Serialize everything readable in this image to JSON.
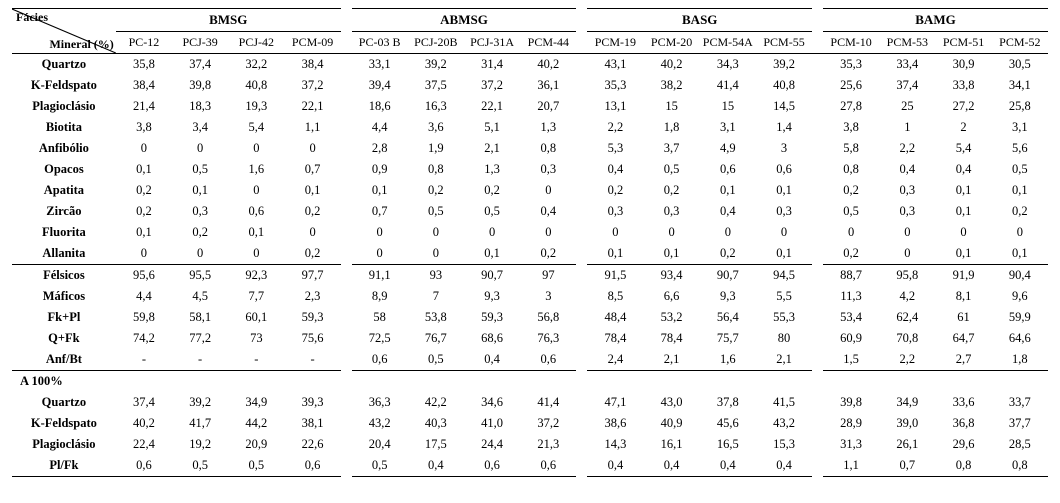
{
  "header": {
    "facies_label": "Fácies",
    "mineral_label": "Mineral (%)",
    "groups": [
      "BMSG",
      "ABMSG",
      "BASG",
      "BAMG"
    ],
    "samples": [
      [
        "PC-12",
        "PCJ-39",
        "PCJ-42",
        "PCM-09"
      ],
      [
        "PC-03 B",
        "PCJ-20B",
        "PCJ-31A",
        "PCM-44"
      ],
      [
        "PCM-19",
        "PCM-20",
        "PCM-54A",
        "PCM-55"
      ],
      [
        "PCM-10",
        "PCM-53",
        "PCM-51",
        "PCM-52"
      ]
    ]
  },
  "rows_main": [
    {
      "label": "Quartzo",
      "v": [
        [
          "35,8",
          "37,4",
          "32,2",
          "38,4"
        ],
        [
          "33,1",
          "39,2",
          "31,4",
          "40,2"
        ],
        [
          "43,1",
          "40,2",
          "34,3",
          "39,2"
        ],
        [
          "35,3",
          "33,4",
          "30,9",
          "30,5"
        ]
      ]
    },
    {
      "label": "K-Feldspato",
      "v": [
        [
          "38,4",
          "39,8",
          "40,8",
          "37,2"
        ],
        [
          "39,4",
          "37,5",
          "37,2",
          "36,1"
        ],
        [
          "35,3",
          "38,2",
          "41,4",
          "40,8"
        ],
        [
          "25,6",
          "37,4",
          "33,8",
          "34,1"
        ]
      ]
    },
    {
      "label": "Plagioclásio",
      "v": [
        [
          "21,4",
          "18,3",
          "19,3",
          "22,1"
        ],
        [
          "18,6",
          "16,3",
          "22,1",
          "20,7"
        ],
        [
          "13,1",
          "15",
          "15",
          "14,5"
        ],
        [
          "27,8",
          "25",
          "27,2",
          "25,8"
        ]
      ]
    },
    {
      "label": "Biotita",
      "v": [
        [
          "3,8",
          "3,4",
          "5,4",
          "1,1"
        ],
        [
          "4,4",
          "3,6",
          "5,1",
          "1,3"
        ],
        [
          "2,2",
          "1,8",
          "3,1",
          "1,4"
        ],
        [
          "3,8",
          "1",
          "2",
          "3,1"
        ]
      ]
    },
    {
      "label": "Anfibólio",
      "v": [
        [
          "0",
          "0",
          "0",
          "0"
        ],
        [
          "2,8",
          "1,9",
          "2,1",
          "0,8"
        ],
        [
          "5,3",
          "3,7",
          "4,9",
          "3"
        ],
        [
          "5,8",
          "2,2",
          "5,4",
          "5,6"
        ]
      ]
    },
    {
      "label": "Opacos",
      "v": [
        [
          "0,1",
          "0,5",
          "1,6",
          "0,7"
        ],
        [
          "0,9",
          "0,8",
          "1,3",
          "0,3"
        ],
        [
          "0,4",
          "0,5",
          "0,6",
          "0,6"
        ],
        [
          "0,8",
          "0,4",
          "0,4",
          "0,5"
        ]
      ]
    },
    {
      "label": "Apatita",
      "v": [
        [
          "0,2",
          "0,1",
          "0",
          "0,1"
        ],
        [
          "0,1",
          "0,2",
          "0,2",
          "0"
        ],
        [
          "0,2",
          "0,2",
          "0,1",
          "0,1"
        ],
        [
          "0,2",
          "0,3",
          "0,1",
          "0,1"
        ]
      ]
    },
    {
      "label": "Zircão",
      "v": [
        [
          "0,2",
          "0,3",
          "0,6",
          "0,2"
        ],
        [
          "0,7",
          "0,5",
          "0,5",
          "0,4"
        ],
        [
          "0,3",
          "0,3",
          "0,4",
          "0,3"
        ],
        [
          "0,5",
          "0,3",
          "0,1",
          "0,2"
        ]
      ]
    },
    {
      "label": "Fluorita",
      "v": [
        [
          "0,1",
          "0,2",
          "0,1",
          "0"
        ],
        [
          "0",
          "0",
          "0",
          "0"
        ],
        [
          "0",
          "0",
          "0",
          "0"
        ],
        [
          "0",
          "0",
          "0",
          "0"
        ]
      ]
    },
    {
      "label": "Allanita",
      "v": [
        [
          "0",
          "0",
          "0",
          "0,2"
        ],
        [
          "0",
          "0",
          "0,1",
          "0,2"
        ],
        [
          "0,1",
          "0,1",
          "0,2",
          "0,1"
        ],
        [
          "0,2",
          "0",
          "0,1",
          "0,1"
        ]
      ]
    }
  ],
  "rows_sum": [
    {
      "label": "Félsicos",
      "v": [
        [
          "95,6",
          "95,5",
          "92,3",
          "97,7"
        ],
        [
          "91,1",
          "93",
          "90,7",
          "97"
        ],
        [
          "91,5",
          "93,4",
          "90,7",
          "94,5"
        ],
        [
          "88,7",
          "95,8",
          "91,9",
          "90,4"
        ]
      ]
    },
    {
      "label": "Máficos",
      "v": [
        [
          "4,4",
          "4,5",
          "7,7",
          "2,3"
        ],
        [
          "8,9",
          "7",
          "9,3",
          "3"
        ],
        [
          "8,5",
          "6,6",
          "9,3",
          "5,5"
        ],
        [
          "11,3",
          "4,2",
          "8,1",
          "9,6"
        ]
      ]
    },
    {
      "label": "Fk+Pl",
      "v": [
        [
          "59,8",
          "58,1",
          "60,1",
          "59,3"
        ],
        [
          "58",
          "53,8",
          "59,3",
          "56,8"
        ],
        [
          "48,4",
          "53,2",
          "56,4",
          "55,3"
        ],
        [
          "53,4",
          "62,4",
          "61",
          "59,9"
        ]
      ]
    },
    {
      "label": "Q+Fk",
      "v": [
        [
          "74,2",
          "77,2",
          "73",
          "75,6"
        ],
        [
          "72,5",
          "76,7",
          "68,6",
          "76,3"
        ],
        [
          "78,4",
          "78,4",
          "75,7",
          "80"
        ],
        [
          "60,9",
          "70,8",
          "64,7",
          "64,6"
        ]
      ]
    },
    {
      "label": "Anf/Bt",
      "v": [
        [
          "-",
          "-",
          "-",
          "-"
        ],
        [
          "0,6",
          "0,5",
          "0,4",
          "0,6"
        ],
        [
          "2,4",
          "2,1",
          "1,6",
          "2,1"
        ],
        [
          "1,5",
          "2,2",
          "2,7",
          "1,8"
        ]
      ]
    }
  ],
  "a100_label": "A 100%",
  "rows_a100": [
    {
      "label": "Quartzo",
      "v": [
        [
          "37,4",
          "39,2",
          "34,9",
          "39,3"
        ],
        [
          "36,3",
          "42,2",
          "34,6",
          "41,4"
        ],
        [
          "47,1",
          "43,0",
          "37,8",
          "41,5"
        ],
        [
          "39,8",
          "34,9",
          "33,6",
          "33,7"
        ]
      ]
    },
    {
      "label": "K-Feldspato",
      "v": [
        [
          "40,2",
          "41,7",
          "44,2",
          "38,1"
        ],
        [
          "43,2",
          "40,3",
          "41,0",
          "37,2"
        ],
        [
          "38,6",
          "40,9",
          "45,6",
          "43,2"
        ],
        [
          "28,9",
          "39,0",
          "36,8",
          "37,7"
        ]
      ]
    },
    {
      "label": "Plagioclásio",
      "v": [
        [
          "22,4",
          "19,2",
          "20,9",
          "22,6"
        ],
        [
          "20,4",
          "17,5",
          "24,4",
          "21,3"
        ],
        [
          "14,3",
          "16,1",
          "16,5",
          "15,3"
        ],
        [
          "31,3",
          "26,1",
          "29,6",
          "28,5"
        ]
      ]
    },
    {
      "label": "Pl/Fk",
      "v": [
        [
          "0,6",
          "0,5",
          "0,5",
          "0,6"
        ],
        [
          "0,5",
          "0,4",
          "0,6",
          "0,6"
        ],
        [
          "0,4",
          "0,4",
          "0,4",
          "0,4"
        ],
        [
          "1,1",
          "0,7",
          "0,8",
          "0,8"
        ]
      ]
    }
  ]
}
